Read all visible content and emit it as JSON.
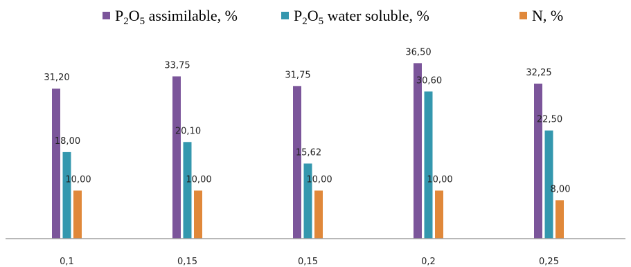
{
  "chart_data": {
    "type": "bar",
    "categories": [
      "0,1",
      "0,15",
      "0,15",
      "0,2",
      "0,25"
    ],
    "series": [
      {
        "name_main": "P",
        "name_sub1": "2",
        "name_mid": "O",
        "name_sub2": "5",
        "name_rest": " assimilable, %",
        "color": "#7B559A",
        "values": [
          31.2,
          33.75,
          31.75,
          36.5,
          32.25
        ],
        "labels": [
          "31,20",
          "33,75",
          "31,75",
          "36,50",
          "32,25"
        ]
      },
      {
        "name_main": "P",
        "name_sub1": "2",
        "name_mid": "O",
        "name_sub2": "5",
        "name_rest": " water soluble, %",
        "color": "#3497AE",
        "values": [
          18.0,
          20.1,
          15.62,
          30.6,
          22.5
        ],
        "labels": [
          "18,00",
          "20,10",
          "15,62",
          "30,60",
          "22,50"
        ]
      },
      {
        "name_main": "N, %",
        "name_sub1": "",
        "name_mid": "",
        "name_sub2": "",
        "name_rest": "",
        "color": "#E0883A",
        "values": [
          10.0,
          10.0,
          10.0,
          10.0,
          8.0
        ],
        "labels": [
          "10,00",
          "10,00",
          "10,00",
          "10,00",
          "8,00"
        ]
      }
    ],
    "ylim": [
      0,
      40
    ],
    "legend_position": "top",
    "grid": false,
    "axis_color": "#A0A0A0"
  }
}
